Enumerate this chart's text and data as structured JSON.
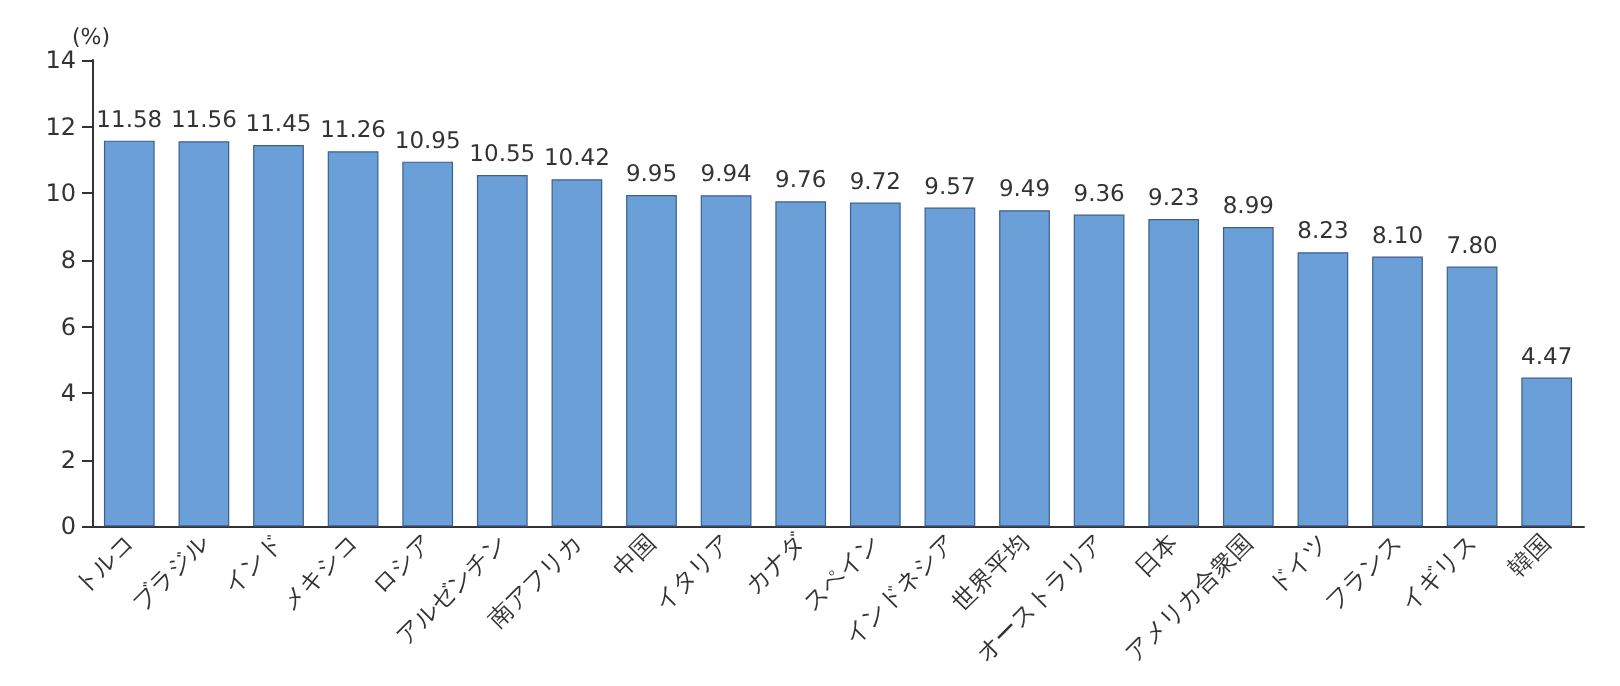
{
  "chart_data": {
    "type": "bar",
    "ylabel": "(%)",
    "categories": [
      "トルコ",
      "ブラジル",
      "インド",
      "メキシコ",
      "ロシア",
      "アルゼンチン",
      "南アフリカ",
      "中国",
      "イタリア",
      "カナダ",
      "スペイン",
      "インドネシア",
      "世界平均",
      "オーストラリア",
      "日本",
      "アメリカ合衆国",
      "ドイツ",
      "フランス",
      "イギリス",
      "韓国"
    ],
    "values": [
      11.58,
      11.56,
      11.45,
      11.26,
      10.95,
      10.55,
      10.42,
      9.95,
      9.94,
      9.76,
      9.72,
      9.57,
      9.49,
      9.36,
      9.23,
      8.99,
      8.23,
      8.1,
      7.8,
      4.47
    ],
    "value_labels": [
      "11.58",
      "11.56",
      "11.45",
      "11.26",
      "10.95",
      "10.55",
      "10.42",
      "9.95",
      "9.94",
      "9.76",
      "9.72",
      "9.57",
      "9.49",
      "9.36",
      "9.23",
      "8.99",
      "8.23",
      "8.10",
      "7.80",
      "4.47"
    ],
    "color": "#6a9fd8",
    "ylim": [
      0,
      14
    ],
    "yticks": [
      0,
      2,
      4,
      6,
      8,
      10,
      12,
      14
    ],
    "grid": false
  }
}
